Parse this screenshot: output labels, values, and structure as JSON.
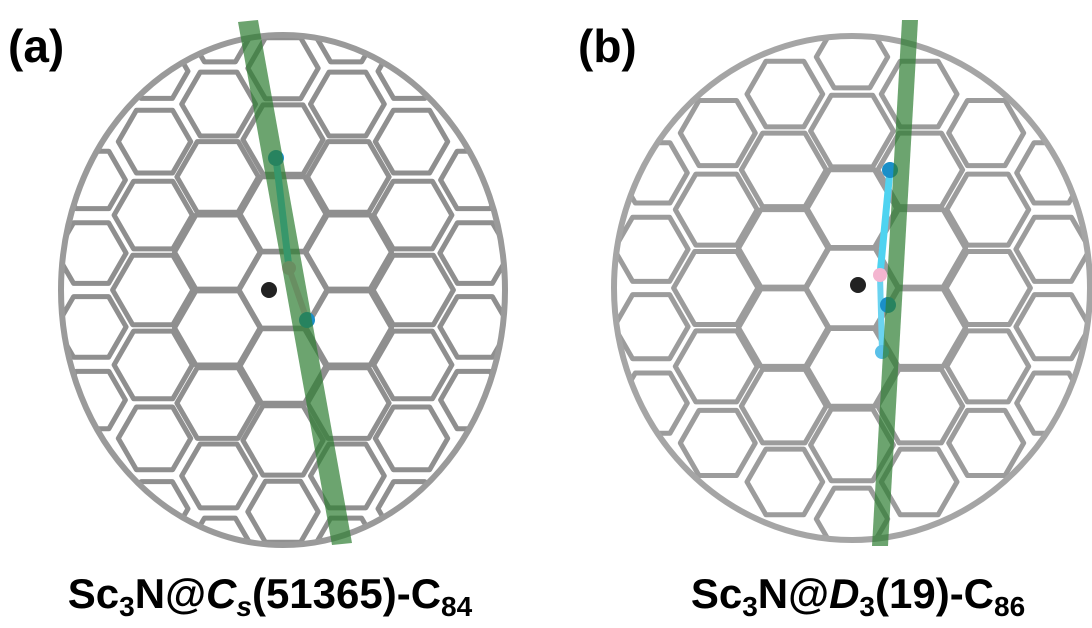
{
  "panels": [
    {
      "label": "(a)",
      "caption": [
        "Sc",
        "3",
        "N@",
        "C",
        "s",
        "(51365)-C",
        "84"
      ]
    },
    {
      "label": "(b)",
      "caption": [
        "Sc",
        "3",
        "N@",
        "D",
        "3",
        "(19)-C",
        "86"
      ]
    }
  ]
}
